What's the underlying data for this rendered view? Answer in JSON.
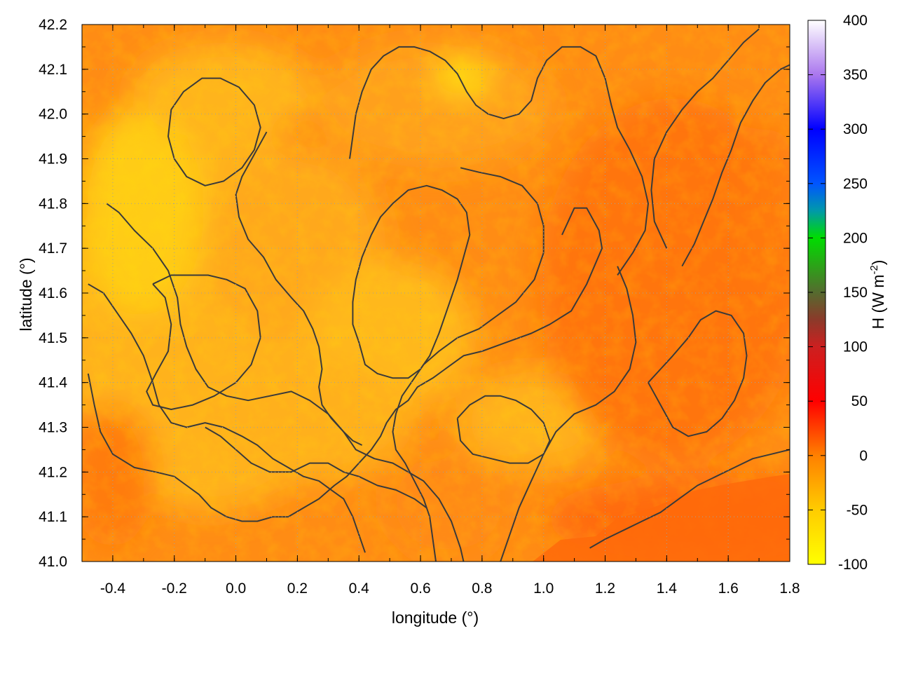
{
  "chart_data": {
    "type": "heatmap",
    "title": "",
    "xlabel": "longitude (°)",
    "ylabel": "latitude (°)",
    "colorbar_label": "H (W m",
    "colorbar_label_sup": "-2",
    "colorbar_label_close": ")",
    "xlim": [
      -0.5,
      1.8
    ],
    "ylim": [
      41.0,
      42.2
    ],
    "x_ticks": [
      -0.4,
      -0.2,
      0.0,
      0.2,
      0.4,
      0.6,
      0.8,
      1.0,
      1.2,
      1.4,
      1.6,
      1.8
    ],
    "x_tick_labels": [
      "-0.4",
      "-0.2",
      "0.0",
      "0.2",
      "0.4",
      "0.6",
      "0.8",
      "1.0",
      "1.2",
      "1.4",
      "1.6",
      "1.8"
    ],
    "y_ticks": [
      41.0,
      41.1,
      41.2,
      41.3,
      41.4,
      41.5,
      41.6,
      41.7,
      41.8,
      41.9,
      42.0,
      42.1,
      42.2
    ],
    "y_tick_labels": [
      "41.0",
      "41.1",
      "41.2",
      "41.3",
      "41.4",
      "41.5",
      "41.6",
      "41.7",
      "41.8",
      "41.9",
      "42.0",
      "42.1",
      "42.2"
    ],
    "colorbar_range": [
      -100,
      400
    ],
    "colorbar_ticks": [
      -100,
      -50,
      0,
      50,
      100,
      150,
      200,
      250,
      300,
      350,
      400
    ],
    "colorbar_tick_labels": [
      "-100",
      "-50",
      "0",
      "50",
      "100",
      "150",
      "200",
      "250",
      "300",
      "350",
      "400"
    ],
    "colormap": [
      {
        "value": -100,
        "color": "#ffff00"
      },
      {
        "value": -50,
        "color": "#ffcc00"
      },
      {
        "value": 0,
        "color": "#ff8000"
      },
      {
        "value": 50,
        "color": "#ff0000"
      },
      {
        "value": 100,
        "color": "#cc2020"
      },
      {
        "value": 125,
        "color": "#8b3a2a"
      },
      {
        "value": 150,
        "color": "#556b2f"
      },
      {
        "value": 200,
        "color": "#00dd00"
      },
      {
        "value": 225,
        "color": "#0099aa"
      },
      {
        "value": 250,
        "color": "#0055ff"
      },
      {
        "value": 300,
        "color": "#0000ff"
      },
      {
        "value": 350,
        "color": "#aa77ee"
      },
      {
        "value": 400,
        "color": "#ffffff"
      }
    ],
    "grid": true,
    "legend": "none",
    "field_description_values": {
      "typical_range": [
        -70,
        20
      ],
      "southeast_sea_value": 15,
      "inland_low": -70
    },
    "contours": [
      [
        [
          1.06,
          41.73
        ],
        [
          1.08,
          41.76
        ],
        [
          1.1,
          41.79
        ],
        [
          1.14,
          41.79
        ],
        [
          1.18,
          41.74
        ],
        [
          1.19,
          41.7
        ],
        [
          1.14,
          41.62
        ],
        [
          1.09,
          41.56
        ],
        [
          1.02,
          41.53
        ],
        [
          0.96,
          41.51
        ],
        [
          0.88,
          41.49
        ],
        [
          0.8,
          41.47
        ],
        [
          0.74,
          41.46
        ],
        [
          0.68,
          41.43
        ],
        [
          0.64,
          41.41
        ],
        [
          0.59,
          41.39
        ],
        [
          0.56,
          41.36
        ],
        [
          0.52,
          41.34
        ],
        [
          0.49,
          41.31
        ],
        [
          0.47,
          41.28
        ],
        [
          0.44,
          41.25
        ],
        [
          0.4,
          41.22
        ],
        [
          0.36,
          41.19
        ],
        [
          0.32,
          41.17
        ],
        [
          0.27,
          41.14
        ],
        [
          0.22,
          41.12
        ],
        [
          0.17,
          41.1
        ],
        [
          0.12,
          41.1
        ],
        [
          0.07,
          41.09
        ],
        [
          0.02,
          41.09
        ],
        [
          -0.03,
          41.1
        ],
        [
          -0.08,
          41.12
        ],
        [
          -0.12,
          41.15
        ],
        [
          -0.16,
          41.17
        ],
        [
          -0.2,
          41.19
        ],
        [
          -0.26,
          41.2
        ],
        [
          -0.33,
          41.21
        ],
        [
          -0.4,
          41.24
        ],
        [
          -0.44,
          41.29
        ],
        [
          -0.46,
          41.35
        ],
        [
          -0.48,
          41.42
        ]
      ],
      [
        [
          -0.42,
          41.8
        ],
        [
          -0.38,
          41.78
        ],
        [
          -0.33,
          41.74
        ],
        [
          -0.27,
          41.7
        ],
        [
          -0.22,
          41.65
        ],
        [
          -0.19,
          41.59
        ],
        [
          -0.18,
          41.53
        ],
        [
          -0.16,
          41.48
        ],
        [
          -0.13,
          41.43
        ],
        [
          -0.09,
          41.39
        ],
        [
          -0.03,
          41.37
        ],
        [
          0.04,
          41.36
        ],
        [
          0.11,
          41.37
        ],
        [
          0.18,
          41.38
        ],
        [
          0.24,
          41.36
        ],
        [
          0.3,
          41.33
        ],
        [
          0.35,
          41.29
        ],
        [
          0.39,
          41.25
        ],
        [
          0.45,
          41.23
        ],
        [
          0.51,
          41.22
        ],
        [
          0.56,
          41.2
        ],
        [
          0.61,
          41.18
        ],
        [
          0.66,
          41.14
        ],
        [
          0.7,
          41.09
        ],
        [
          0.73,
          41.03
        ],
        [
          0.74,
          41.0
        ]
      ],
      [
        [
          -0.48,
          41.62
        ],
        [
          -0.43,
          41.6
        ],
        [
          -0.38,
          41.55
        ],
        [
          -0.34,
          41.51
        ],
        [
          -0.3,
          41.46
        ],
        [
          -0.27,
          41.4
        ],
        [
          -0.25,
          41.35
        ],
        [
          -0.21,
          41.31
        ],
        [
          -0.16,
          41.3
        ],
        [
          -0.1,
          41.31
        ],
        [
          -0.04,
          41.3
        ],
        [
          0.02,
          41.28
        ],
        [
          0.07,
          41.26
        ],
        [
          0.12,
          41.23
        ],
        [
          0.17,
          41.21
        ],
        [
          0.22,
          41.19
        ],
        [
          0.27,
          41.18
        ],
        [
          0.31,
          41.16
        ],
        [
          0.35,
          41.14
        ],
        [
          0.38,
          41.1
        ],
        [
          0.4,
          41.06
        ],
        [
          0.42,
          41.02
        ]
      ],
      [
        [
          0.73,
          41.88
        ],
        [
          0.79,
          41.87
        ],
        [
          0.86,
          41.86
        ],
        [
          0.93,
          41.84
        ],
        [
          0.98,
          41.8
        ],
        [
          1.0,
          41.75
        ],
        [
          1.0,
          41.69
        ],
        [
          0.97,
          41.63
        ],
        [
          0.91,
          41.58
        ],
        [
          0.85,
          41.55
        ],
        [
          0.79,
          41.52
        ],
        [
          0.72,
          41.5
        ],
        [
          0.66,
          41.47
        ],
        [
          0.61,
          41.44
        ],
        [
          0.57,
          41.4
        ],
        [
          0.54,
          41.37
        ],
        [
          0.52,
          41.33
        ],
        [
          0.51,
          41.29
        ],
        [
          0.52,
          41.25
        ],
        [
          0.55,
          41.22
        ],
        [
          0.58,
          41.18
        ],
        [
          0.61,
          41.14
        ],
        [
          0.63,
          41.1
        ],
        [
          0.64,
          41.05
        ],
        [
          0.65,
          41.0
        ]
      ],
      [
        [
          1.24,
          41.66
        ],
        [
          1.27,
          41.61
        ],
        [
          1.29,
          41.55
        ],
        [
          1.3,
          41.49
        ],
        [
          1.28,
          41.43
        ],
        [
          1.23,
          41.38
        ],
        [
          1.17,
          41.35
        ],
        [
          1.1,
          41.33
        ],
        [
          1.04,
          41.29
        ],
        [
          1.0,
          41.24
        ],
        [
          0.96,
          41.18
        ],
        [
          0.92,
          41.12
        ],
        [
          0.89,
          41.06
        ],
        [
          0.86,
          41.0
        ]
      ],
      [
        [
          0.1,
          41.96
        ],
        [
          0.06,
          41.91
        ],
        [
          0.02,
          41.86
        ],
        [
          0.0,
          41.82
        ],
        [
          0.01,
          41.77
        ],
        [
          0.04,
          41.72
        ],
        [
          0.09,
          41.68
        ],
        [
          0.13,
          41.63
        ],
        [
          0.18,
          41.59
        ],
        [
          0.22,
          41.56
        ],
        [
          0.25,
          41.52
        ],
        [
          0.27,
          41.48
        ],
        [
          0.28,
          41.43
        ],
        [
          0.27,
          41.39
        ],
        [
          0.28,
          41.35
        ],
        [
          0.31,
          41.32
        ],
        [
          0.35,
          41.29
        ],
        [
          0.38,
          41.27
        ],
        [
          0.41,
          41.26
        ]
      ],
      [
        [
          0.44,
          41.73
        ],
        [
          0.41,
          41.68
        ],
        [
          0.39,
          41.63
        ],
        [
          0.38,
          41.58
        ],
        [
          0.38,
          41.53
        ],
        [
          0.4,
          41.49
        ],
        [
          0.42,
          41.44
        ],
        [
          0.46,
          41.42
        ],
        [
          0.51,
          41.41
        ],
        [
          0.56,
          41.41
        ],
        [
          0.6,
          41.43
        ],
        [
          0.63,
          41.46
        ],
        [
          0.66,
          41.51
        ],
        [
          0.69,
          41.57
        ],
        [
          0.72,
          41.63
        ],
        [
          0.74,
          41.68
        ],
        [
          0.76,
          41.73
        ],
        [
          0.75,
          41.78
        ],
        [
          0.72,
          41.81
        ],
        [
          0.67,
          41.83
        ],
        [
          0.62,
          41.84
        ],
        [
          0.56,
          41.83
        ],
        [
          0.51,
          41.8
        ],
        [
          0.47,
          41.77
        ],
        [
          0.44,
          41.73
        ]
      ],
      [
        [
          -0.27,
          41.62
        ],
        [
          -0.23,
          41.59
        ],
        [
          -0.21,
          41.53
        ],
        [
          -0.22,
          41.47
        ],
        [
          -0.26,
          41.42
        ],
        [
          -0.29,
          41.38
        ],
        [
          -0.27,
          41.35
        ],
        [
          -0.21,
          41.34
        ],
        [
          -0.14,
          41.35
        ],
        [
          -0.07,
          41.37
        ],
        [
          0.0,
          41.4
        ],
        [
          0.05,
          41.44
        ],
        [
          0.08,
          41.5
        ],
        [
          0.07,
          41.56
        ],
        [
          0.03,
          41.61
        ],
        [
          -0.03,
          41.63
        ],
        [
          -0.09,
          41.64
        ],
        [
          -0.15,
          41.64
        ],
        [
          -0.21,
          41.64
        ],
        [
          -0.27,
          41.62
        ]
      ],
      [
        [
          0.72,
          41.32
        ],
        [
          0.76,
          41.35
        ],
        [
          0.81,
          41.37
        ],
        [
          0.86,
          41.37
        ],
        [
          0.91,
          41.36
        ],
        [
          0.96,
          41.34
        ],
        [
          1.0,
          41.31
        ],
        [
          1.02,
          41.27
        ],
        [
          1.0,
          41.24
        ],
        [
          0.95,
          41.22
        ],
        [
          0.89,
          41.22
        ],
        [
          0.83,
          41.23
        ],
        [
          0.77,
          41.24
        ],
        [
          0.73,
          41.27
        ],
        [
          0.72,
          41.32
        ]
      ],
      [
        [
          1.24,
          41.64
        ],
        [
          1.29,
          41.69
        ],
        [
          1.33,
          41.74
        ],
        [
          1.34,
          41.8
        ],
        [
          1.32,
          41.86
        ],
        [
          1.28,
          41.92
        ],
        [
          1.24,
          41.97
        ],
        [
          1.22,
          42.02
        ],
        [
          1.2,
          42.08
        ],
        [
          1.17,
          42.13
        ],
        [
          1.12,
          42.15
        ],
        [
          1.06,
          42.15
        ],
        [
          1.01,
          42.12
        ],
        [
          0.98,
          42.08
        ],
        [
          0.96,
          42.03
        ],
        [
          0.92,
          42.0
        ],
        [
          0.87,
          41.99
        ],
        [
          0.82,
          42.0
        ],
        [
          0.78,
          42.02
        ],
        [
          0.75,
          42.05
        ],
        [
          0.72,
          42.09
        ],
        [
          0.68,
          42.12
        ],
        [
          0.63,
          42.14
        ],
        [
          0.58,
          42.15
        ],
        [
          0.53,
          42.15
        ],
        [
          0.48,
          42.13
        ],
        [
          0.44,
          42.1
        ],
        [
          0.41,
          42.05
        ],
        [
          0.39,
          42.0
        ],
        [
          0.38,
          41.95
        ],
        [
          0.37,
          41.9
        ]
      ],
      [
        [
          1.34,
          41.4
        ],
        [
          1.38,
          41.35
        ],
        [
          1.42,
          41.3
        ],
        [
          1.47,
          41.28
        ],
        [
          1.53,
          41.29
        ],
        [
          1.58,
          41.32
        ],
        [
          1.62,
          41.36
        ],
        [
          1.65,
          41.41
        ],
        [
          1.66,
          41.46
        ],
        [
          1.65,
          41.51
        ],
        [
          1.61,
          41.55
        ],
        [
          1.56,
          41.56
        ],
        [
          1.51,
          41.54
        ],
        [
          1.47,
          41.5
        ],
        [
          1.42,
          41.46
        ],
        [
          1.38,
          41.43
        ],
        [
          1.34,
          41.4
        ]
      ],
      [
        [
          1.45,
          41.66
        ],
        [
          1.49,
          41.71
        ],
        [
          1.52,
          41.76
        ],
        [
          1.55,
          41.81
        ],
        [
          1.58,
          41.87
        ],
        [
          1.61,
          41.92
        ],
        [
          1.64,
          41.98
        ],
        [
          1.68,
          42.03
        ],
        [
          1.72,
          42.07
        ],
        [
          1.77,
          42.1
        ],
        [
          1.8,
          42.11
        ]
      ],
      [
        [
          1.4,
          41.7
        ],
        [
          1.36,
          41.76
        ],
        [
          1.35,
          41.83
        ],
        [
          1.36,
          41.9
        ],
        [
          1.4,
          41.96
        ],
        [
          1.45,
          42.01
        ],
        [
          1.5,
          42.05
        ],
        [
          1.55,
          42.08
        ],
        [
          1.6,
          42.12
        ],
        [
          1.65,
          42.16
        ],
        [
          1.7,
          42.19
        ]
      ],
      [
        [
          1.8,
          41.25
        ],
        [
          1.74,
          41.24
        ],
        [
          1.68,
          41.23
        ],
        [
          1.62,
          41.21
        ],
        [
          1.56,
          41.19
        ],
        [
          1.5,
          41.17
        ],
        [
          1.44,
          41.14
        ],
        [
          1.38,
          41.11
        ],
        [
          1.32,
          41.09
        ],
        [
          1.26,
          41.07
        ],
        [
          1.2,
          41.05
        ],
        [
          1.15,
          41.03
        ]
      ],
      [
        [
          -0.1,
          41.3
        ],
        [
          -0.05,
          41.28
        ],
        [
          0.0,
          41.25
        ],
        [
          0.05,
          41.22
        ],
        [
          0.11,
          41.2
        ],
        [
          0.18,
          41.2
        ],
        [
          0.24,
          41.22
        ],
        [
          0.3,
          41.22
        ],
        [
          0.35,
          41.2
        ],
        [
          0.4,
          41.19
        ],
        [
          0.46,
          41.17
        ],
        [
          0.52,
          41.16
        ],
        [
          0.58,
          41.14
        ],
        [
          0.62,
          41.12
        ]
      ],
      [
        [
          -0.2,
          41.9
        ],
        [
          -0.16,
          41.86
        ],
        [
          -0.1,
          41.84
        ],
        [
          -0.04,
          41.85
        ],
        [
          0.02,
          41.88
        ],
        [
          0.06,
          41.92
        ],
        [
          0.08,
          41.97
        ],
        [
          0.06,
          42.02
        ],
        [
          0.01,
          42.06
        ],
        [
          -0.05,
          42.08
        ],
        [
          -0.11,
          42.08
        ],
        [
          -0.17,
          42.05
        ],
        [
          -0.21,
          42.01
        ],
        [
          -0.22,
          41.95
        ],
        [
          -0.2,
          41.9
        ]
      ]
    ]
  }
}
